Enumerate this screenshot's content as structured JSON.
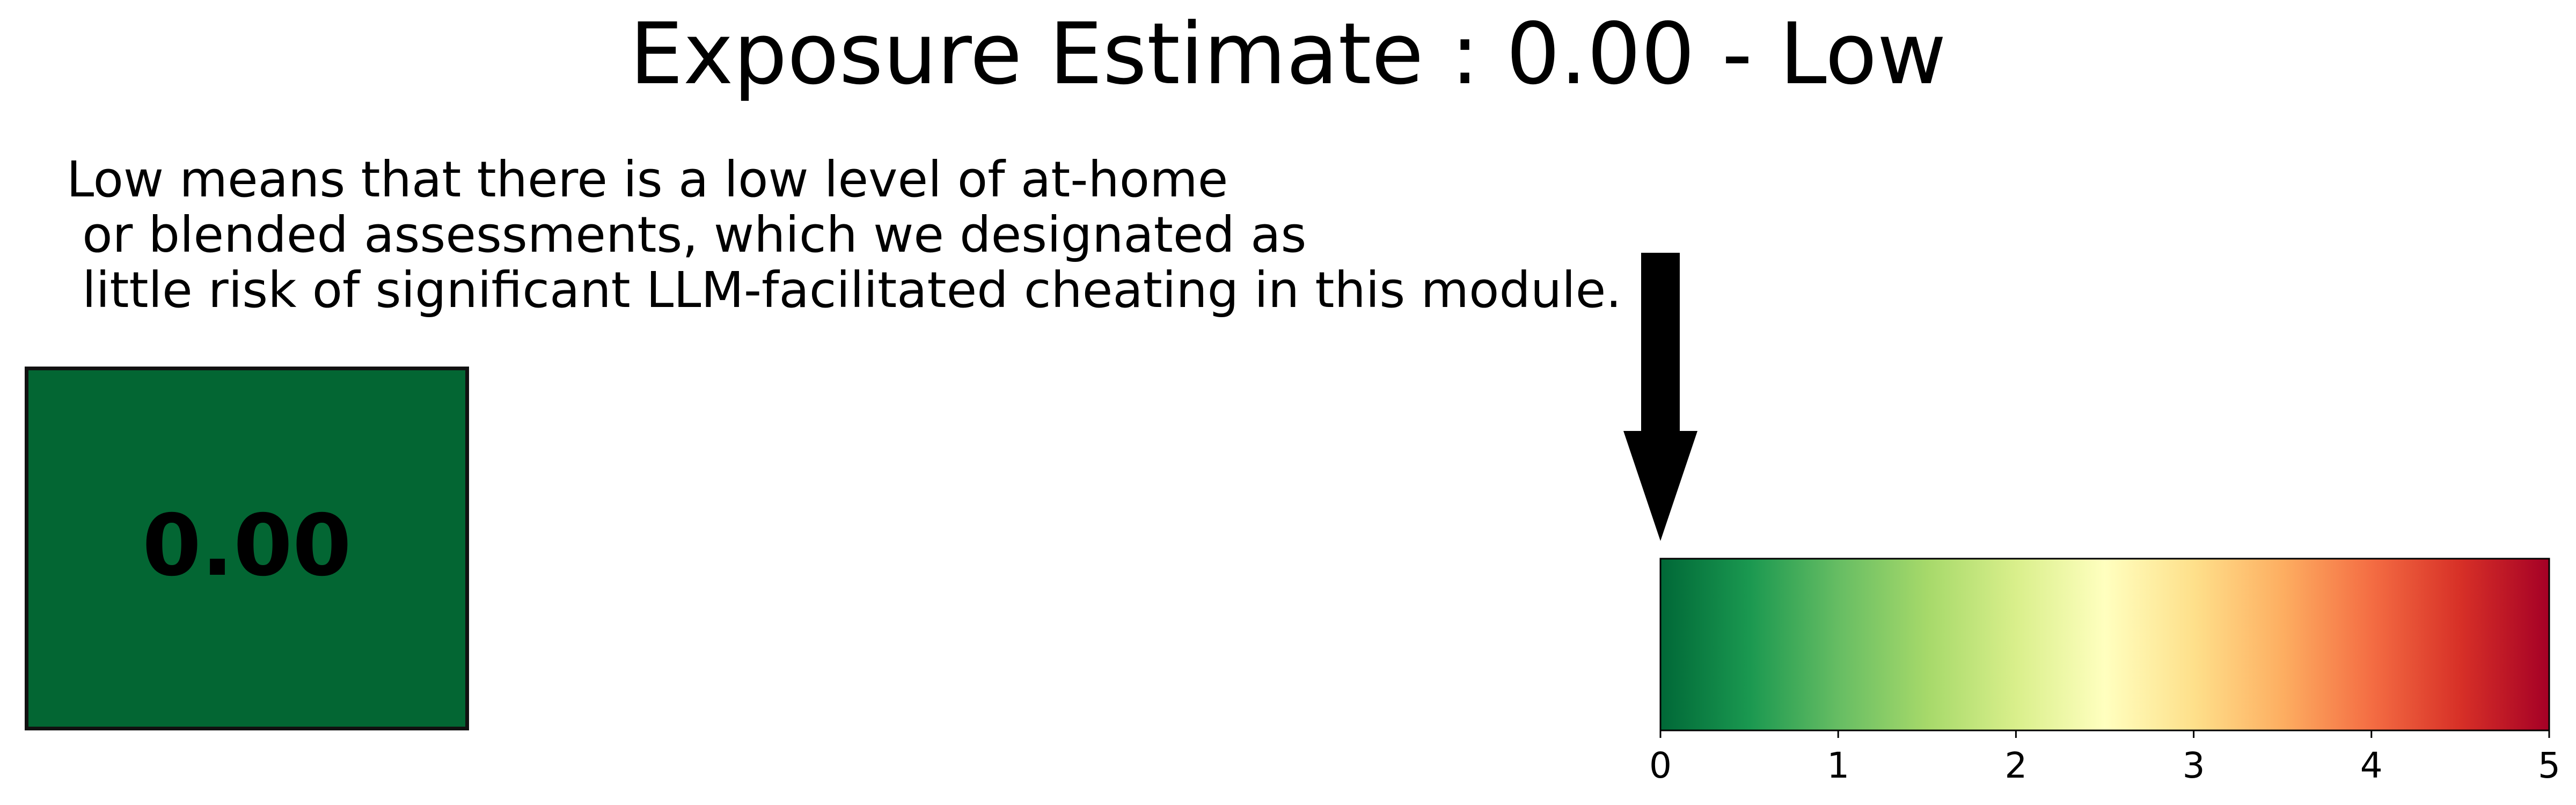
{
  "title": "Exposure Estimate : 0.00 - Low",
  "description": "Low means that there is a low level of at-home\n or blended assessments, which we designated as\n little risk of significant LLM-facilitated cheating in this module.",
  "score": {
    "label": "0.00",
    "value": 0.0,
    "color": "#036633"
  },
  "chart_data": {
    "type": "gauge",
    "value": 0.0,
    "xlim": [
      0,
      5
    ],
    "ticks": [
      "0",
      "1",
      "2",
      "3",
      "4",
      "5"
    ],
    "colormap": "RdYlGn_r",
    "colormap_stops": [
      "#006837",
      "#1a9850",
      "#66bd63",
      "#a6d96a",
      "#d9ef8b",
      "#ffffbf",
      "#fee08b",
      "#fdae61",
      "#f46d43",
      "#d73027",
      "#a50026"
    ]
  }
}
